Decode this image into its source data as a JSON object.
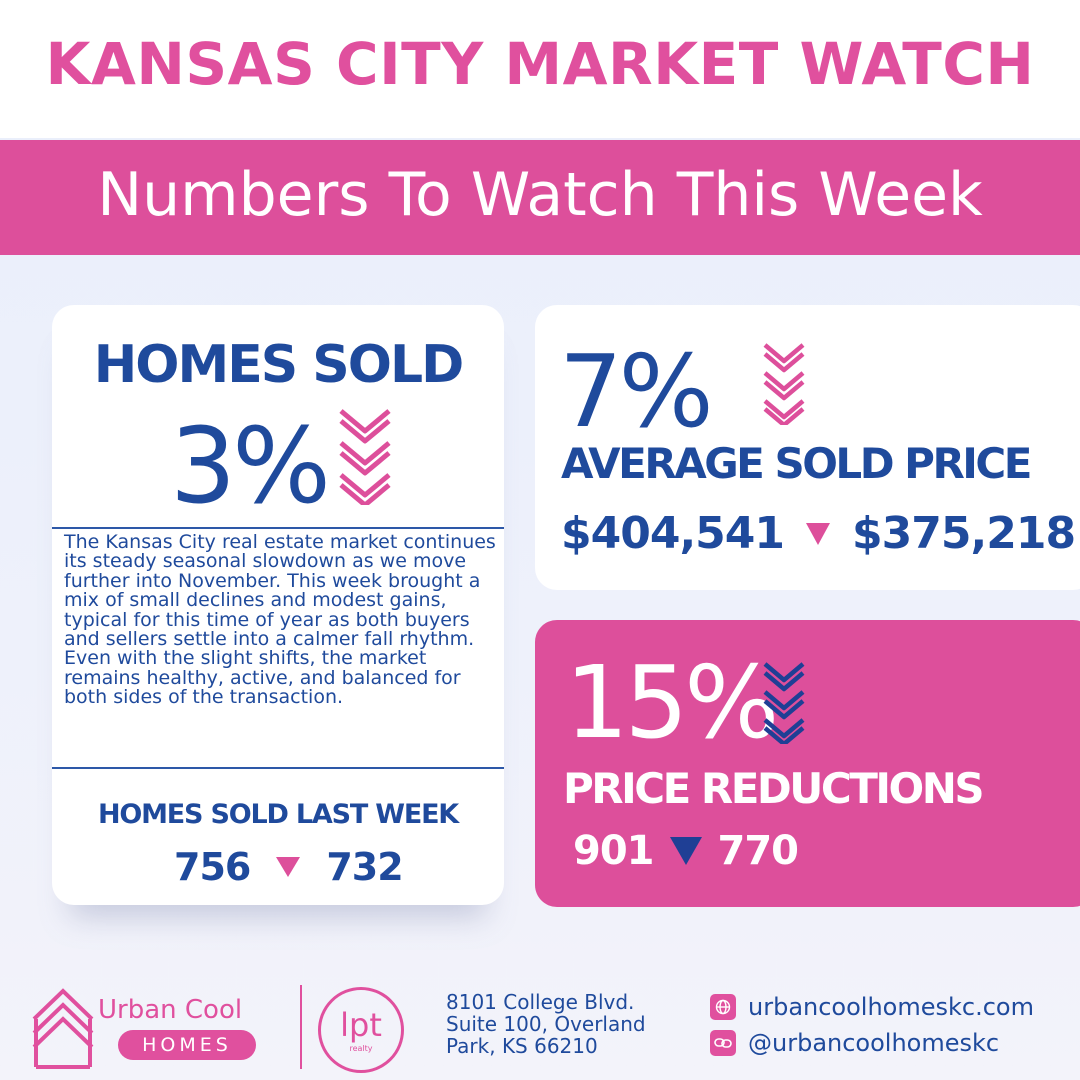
{
  "header": {
    "title": "KANSAS CITY MARKET WATCH",
    "subtitle": "Numbers To Watch This Week"
  },
  "homes_sold": {
    "title": "HOMES SOLD",
    "percent": "3%",
    "direction": "down",
    "description": "The Kansas City real estate market continues its steady seasonal slowdown as we move further into November. This week brought a mix of small declines and modest gains, typical for this time of year as both buyers and sellers settle into a calmer fall rhythm. Even with the slight shifts, the market remains healthy, active, and balanced for both sides of the transaction.",
    "last_week_label": "HOMES SOLD LAST WEEK",
    "previous": "756",
    "current": "732"
  },
  "average_sold_price": {
    "percent": "7%",
    "direction": "down",
    "label": "AVERAGE SOLD PRICE",
    "previous": "$404,541",
    "current": "$375,218"
  },
  "price_reductions": {
    "percent": "15%",
    "direction": "down",
    "label": "PRICE REDUCTIONS",
    "previous": "901",
    "current": "770"
  },
  "footer": {
    "logo_brand": "Urban Cool",
    "logo_sub": "HOMES",
    "partner_logo": "lpt",
    "partner_sub": "realty",
    "address_line1": "8101 College Blvd.",
    "address_line2": "Suite 100, Overland",
    "address_line3": "Park, KS 66210",
    "website": "urbancoolhomeskc.com",
    "social": "@urbancoolhomeskc"
  },
  "colors": {
    "pink": "#dd4f9b",
    "navy": "#1f4a9c",
    "white": "#ffffff"
  },
  "icons": [
    "chevrons-down-icon",
    "triangle-down-icon",
    "house-logo-icon",
    "globe-icon",
    "link-icon"
  ]
}
